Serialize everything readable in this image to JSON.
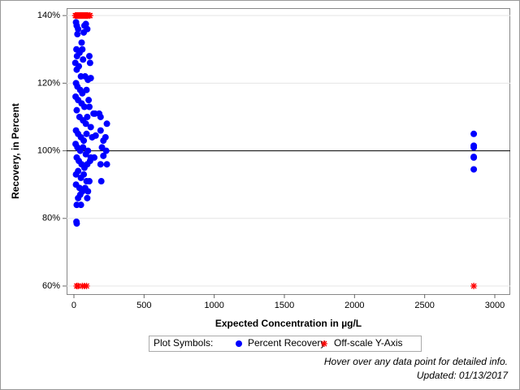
{
  "chart_data": {
    "type": "scatter",
    "x_label": "Expected Concentration in µg/L",
    "y_label": "Recovery, in Percent",
    "xlim": [
      -52,
      3110
    ],
    "ylim": [
      57.6,
      142.2
    ],
    "xticks": [
      0,
      500,
      1000,
      1500,
      2000,
      2500,
      3000
    ],
    "yticks": [
      {
        "value": 60,
        "label": "60%"
      },
      {
        "value": 80,
        "label": "80%"
      },
      {
        "value": 100,
        "label": "100%"
      },
      {
        "value": 120,
        "label": "120%"
      },
      {
        "value": 140,
        "label": "140%"
      }
    ],
    "grid": true,
    "reference_line": 100,
    "legend_title": "Plot Symbols:",
    "series": [
      {
        "name": "Percent Recovery",
        "color": "#0000ff",
        "marker": "circle",
        "x": [
          15,
          20,
          25,
          30,
          18,
          22,
          40,
          55,
          60,
          65,
          75,
          85,
          95,
          70,
          110,
          115,
          10,
          20,
          35,
          50,
          80,
          100,
          120,
          15,
          25,
          45,
          60,
          90,
          12,
          30,
          55,
          75,
          105,
          110,
          140,
          150,
          190,
          180,
          20,
          40,
          65,
          85,
          95,
          120,
          235,
          15,
          30,
          50,
          70,
          90,
          130,
          155,
          190,
          225,
          210,
          12,
          25,
          45,
          65,
          85,
          100,
          120,
          145,
          200,
          230,
          210,
          20,
          35,
          55,
          75,
          95,
          115,
          190,
          235,
          15,
          30,
          50,
          70,
          90,
          110,
          195,
          15,
          40,
          60,
          80,
          100,
          30,
          45,
          20,
          50,
          95,
          18,
          20,
          2850,
          2850,
          2850,
          2850,
          2850,
          2850
        ],
        "values": [
          138,
          137,
          134.5,
          136,
          130,
          128,
          129,
          132,
          130,
          127,
          137,
          137.5,
          136,
          135,
          128,
          126,
          126,
          124,
          125,
          122,
          122,
          121,
          121.5,
          120,
          119,
          118,
          117,
          118,
          116,
          115,
          114,
          113,
          115,
          113,
          111,
          111,
          110,
          111,
          112,
          110,
          109,
          108,
          110,
          107,
          108,
          106,
          105,
          104,
          103,
          105,
          104,
          104.5,
          106,
          104,
          103,
          102,
          101,
          100,
          101,
          99,
          100,
          98,
          98,
          101,
          100,
          98.5,
          98,
          97,
          96,
          95,
          96,
          97,
          96,
          96,
          93,
          94,
          92,
          93,
          91,
          91,
          91,
          90,
          89,
          88,
          89,
          88,
          86,
          87,
          84,
          84,
          86,
          79,
          78.5,
          105,
          101.5,
          101,
          98,
          98.2,
          94.5
        ]
      },
      {
        "name": "Off-scale Y-Axis",
        "color": "#ff0000",
        "marker": "star",
        "x": [
          10,
          15,
          20,
          25,
          30,
          35,
          40,
          45,
          50,
          55,
          60,
          65,
          70,
          75,
          80,
          85,
          90,
          95,
          100,
          110,
          115,
          20,
          30,
          60,
          75,
          90,
          2850
        ],
        "values": [
          140,
          140,
          140,
          140,
          140,
          140,
          140,
          140,
          140,
          140,
          140,
          140,
          140,
          140,
          140,
          140,
          140,
          140,
          140,
          140,
          140,
          60,
          60,
          60,
          60,
          60,
          60
        ]
      }
    ],
    "footnotes": [
      "Hover over any data point for detailed info.",
      "Updated: 01/13/2017"
    ]
  }
}
